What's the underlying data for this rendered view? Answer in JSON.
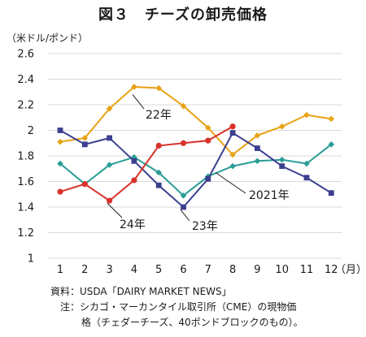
{
  "chart_data": {
    "type": "line",
    "title": "図３　チーズの卸売価格",
    "ylabel": "（米ドル/ポンド）",
    "xlabel": "（月）",
    "ylim": [
      1,
      2.6
    ],
    "y_ticks": [
      "1",
      "1.2",
      "1.4",
      "1.6",
      "1.8",
      "2",
      "2.2",
      "2.4",
      "2.6"
    ],
    "categories": [
      "1",
      "2",
      "3",
      "4",
      "5",
      "6",
      "7",
      "8",
      "9",
      "10",
      "11",
      "12"
    ],
    "grid": true,
    "series": [
      {
        "name": "2021年",
        "color": "#2a9d96",
        "marker": "diamond",
        "values": [
          1.74,
          1.58,
          1.73,
          1.79,
          1.67,
          1.49,
          1.64,
          1.72,
          1.76,
          1.77,
          1.74,
          1.89
        ]
      },
      {
        "name": "22年",
        "color": "#e8a317",
        "marker": "diamond",
        "values": [
          1.91,
          1.94,
          2.17,
          2.34,
          2.33,
          2.19,
          2.02,
          1.81,
          1.96,
          2.03,
          2.12,
          2.09
        ]
      },
      {
        "name": "23年",
        "color": "#3b3f8f",
        "marker": "square",
        "values": [
          2.0,
          1.89,
          1.94,
          1.76,
          1.57,
          1.4,
          1.62,
          1.98,
          1.86,
          1.72,
          1.63,
          1.51
        ]
      },
      {
        "name": "24年",
        "color": "#d9322a",
        "marker": "circle",
        "values": [
          1.52,
          1.58,
          1.45,
          1.61,
          1.88,
          1.9,
          1.92,
          2.03,
          null,
          null,
          null,
          null
        ]
      }
    ]
  },
  "notes": {
    "source": "資料：USDA「DAIRY MARKET NEWS」",
    "note_line1": "注：シカゴ・マーカンタイル取引所（CME）の現物価",
    "note_line2": "格（チェダーチーズ、40ポンドブロックのもの）。"
  }
}
